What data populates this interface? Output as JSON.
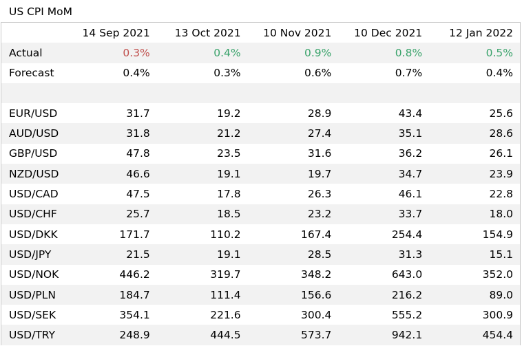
{
  "title": "US CPI MoM",
  "columns": [
    "14 Sep 2021",
    "13 Oct 2021",
    "10 Nov 2021",
    "10 Dec 2021",
    "12 Jan 2022"
  ],
  "colors": {
    "negative": "#c0504d",
    "positive": "#3aa36b",
    "shade": "#f2f2f2"
  },
  "actual": {
    "label": "Actual",
    "values": [
      "0.3%",
      "0.4%",
      "0.9%",
      "0.8%",
      "0.5%"
    ],
    "tone": [
      "neg",
      "pos",
      "pos",
      "pos",
      "pos"
    ]
  },
  "forecast": {
    "label": "Forecast",
    "values": [
      "0.4%",
      "0.3%",
      "0.6%",
      "0.7%",
      "0.4%"
    ]
  },
  "pairs": [
    {
      "label": "EUR/USD",
      "values": [
        "31.7",
        "19.2",
        "28.9",
        "43.4",
        "25.6"
      ]
    },
    {
      "label": "AUD/USD",
      "values": [
        "31.8",
        "21.2",
        "27.4",
        "35.1",
        "28.6"
      ]
    },
    {
      "label": "GBP/USD",
      "values": [
        "47.8",
        "23.5",
        "31.6",
        "36.2",
        "26.1"
      ]
    },
    {
      "label": "NZD/USD",
      "values": [
        "46.6",
        "19.1",
        "19.7",
        "34.7",
        "23.9"
      ]
    },
    {
      "label": "USD/CAD",
      "values": [
        "47.5",
        "17.8",
        "26.3",
        "46.1",
        "22.8"
      ]
    },
    {
      "label": "USD/CHF",
      "values": [
        "25.7",
        "18.5",
        "23.2",
        "33.7",
        "18.0"
      ]
    },
    {
      "label": "USD/DKK",
      "values": [
        "171.7",
        "110.2",
        "167.4",
        "254.4",
        "154.9"
      ]
    },
    {
      "label": "USD/JPY",
      "values": [
        "21.5",
        "19.1",
        "28.5",
        "31.3",
        "15.1"
      ]
    },
    {
      "label": "USD/NOK",
      "values": [
        "446.2",
        "319.7",
        "348.2",
        "643.0",
        "352.0"
      ]
    },
    {
      "label": "USD/PLN",
      "values": [
        "184.7",
        "111.4",
        "156.6",
        "216.2",
        "89.0"
      ]
    },
    {
      "label": "USD/SEK",
      "values": [
        "354.1",
        "221.6",
        "300.4",
        "555.2",
        "300.9"
      ]
    },
    {
      "label": "USD/TRY",
      "values": [
        "248.9",
        "444.5",
        "573.7",
        "942.1",
        "454.4"
      ]
    }
  ]
}
